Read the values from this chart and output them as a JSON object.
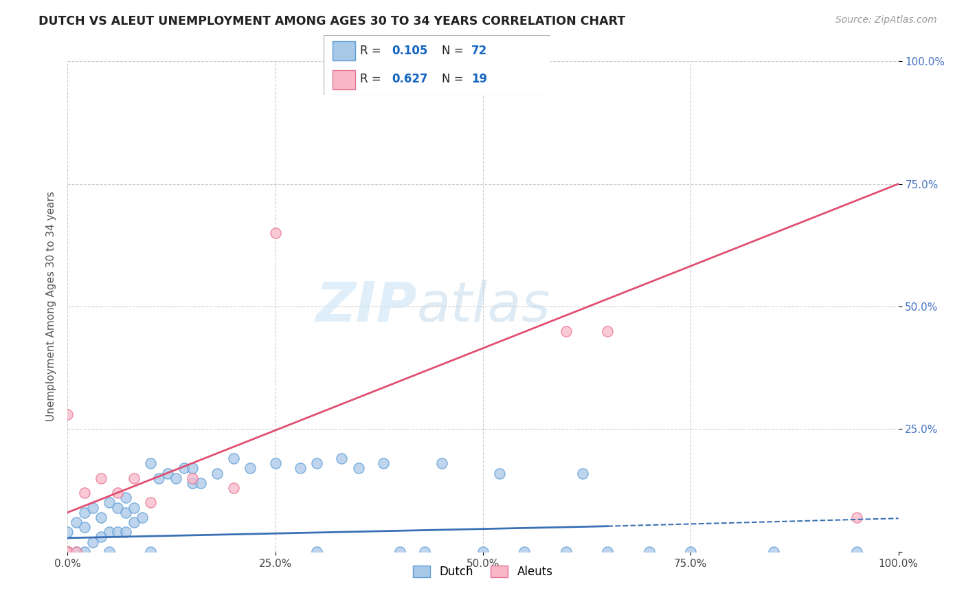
{
  "title": "DUTCH VS ALEUT UNEMPLOYMENT AMONG AGES 30 TO 34 YEARS CORRELATION CHART",
  "source": "Source: ZipAtlas.com",
  "ylabel": "Unemployment Among Ages 30 to 34 years",
  "watermark_zip": "ZIP",
  "watermark_atlas": "atlas",
  "dutch_R": 0.105,
  "dutch_N": 72,
  "aleut_R": 0.627,
  "aleut_N": 19,
  "dutch_scatter_color": "#a8c8e8",
  "dutch_scatter_edge": "#5b9bd5",
  "aleut_scatter_color": "#f8b8c8",
  "aleut_scatter_edge": "#e87090",
  "dutch_line_color": "#3a70b5",
  "aleut_line_color": "#e05070",
  "background_color": "#ffffff",
  "grid_color": "#c8c8c8",
  "title_color": "#222222",
  "source_color": "#999999",
  "ylabel_color": "#555555",
  "ytick_color": "#4472c4",
  "xtick_color": "#444444",
  "legend_box_color": "#aaaaaa",
  "R_N_color": "#1565c0",
  "xlim": [
    0,
    1
  ],
  "ylim": [
    0,
    1
  ],
  "xticks": [
    0.0,
    0.25,
    0.5,
    0.75,
    1.0
  ],
  "xticklabels": [
    "0.0%",
    "25.0%",
    "50.0%",
    "75.0%",
    "100.0%"
  ],
  "yticks": [
    0.0,
    0.25,
    0.5,
    0.75,
    1.0
  ],
  "yticklabels": [
    "",
    "25.0%",
    "50.0%",
    "75.0%",
    "100.0%"
  ],
  "dutch_x": [
    0.0,
    0.0,
    0.0,
    0.0,
    0.0,
    0.0,
    0.0,
    0.0,
    0.0,
    0.0,
    0.0,
    0.0,
    0.0,
    0.0,
    0.0,
    0.0,
    0.0,
    0.0,
    0.0,
    0.0,
    0.01,
    0.01,
    0.02,
    0.02,
    0.02,
    0.03,
    0.03,
    0.04,
    0.04,
    0.05,
    0.05,
    0.05,
    0.06,
    0.06,
    0.07,
    0.07,
    0.07,
    0.08,
    0.08,
    0.09,
    0.1,
    0.1,
    0.11,
    0.12,
    0.13,
    0.14,
    0.15,
    0.15,
    0.16,
    0.18,
    0.2,
    0.22,
    0.25,
    0.28,
    0.3,
    0.3,
    0.33,
    0.35,
    0.38,
    0.4,
    0.43,
    0.45,
    0.5,
    0.52,
    0.55,
    0.6,
    0.62,
    0.65,
    0.7,
    0.75,
    0.85,
    0.95
  ],
  "dutch_y": [
    0.0,
    0.0,
    0.0,
    0.0,
    0.0,
    0.0,
    0.0,
    0.0,
    0.0,
    0.0,
    0.0,
    0.0,
    0.0,
    0.0,
    0.0,
    0.0,
    0.0,
    0.0,
    0.0,
    0.04,
    0.0,
    0.06,
    0.0,
    0.05,
    0.08,
    0.02,
    0.09,
    0.03,
    0.07,
    0.0,
    0.04,
    0.1,
    0.04,
    0.09,
    0.04,
    0.08,
    0.11,
    0.06,
    0.09,
    0.07,
    0.0,
    0.18,
    0.15,
    0.16,
    0.15,
    0.17,
    0.14,
    0.17,
    0.14,
    0.16,
    0.19,
    0.17,
    0.18,
    0.17,
    0.0,
    0.18,
    0.19,
    0.17,
    0.18,
    0.0,
    0.0,
    0.18,
    0.0,
    0.16,
    0.0,
    0.0,
    0.16,
    0.0,
    0.0,
    0.0,
    0.0,
    0.0
  ],
  "aleut_x": [
    0.0,
    0.0,
    0.0,
    0.0,
    0.0,
    0.0,
    0.0,
    0.01,
    0.02,
    0.04,
    0.06,
    0.08,
    0.1,
    0.15,
    0.2,
    0.25,
    0.6,
    0.65,
    0.95
  ],
  "aleut_y": [
    0.0,
    0.0,
    0.0,
    0.0,
    0.0,
    0.0,
    0.28,
    0.0,
    0.12,
    0.15,
    0.12,
    0.15,
    0.1,
    0.15,
    0.13,
    0.65,
    0.45,
    0.45,
    0.07
  ],
  "dutch_line_x0": 0.0,
  "dutch_line_x1": 1.0,
  "dutch_line_y0": 0.028,
  "dutch_line_y1": 0.068,
  "dutch_line_dash_x0": 0.65,
  "dutch_line_dash_x1": 1.0,
  "dutch_line_dash_y0": 0.052,
  "dutch_line_dash_y1": 0.068,
  "aleut_line_x0": 0.0,
  "aleut_line_x1": 1.0,
  "aleut_line_y0": 0.08,
  "aleut_line_y1": 0.75
}
